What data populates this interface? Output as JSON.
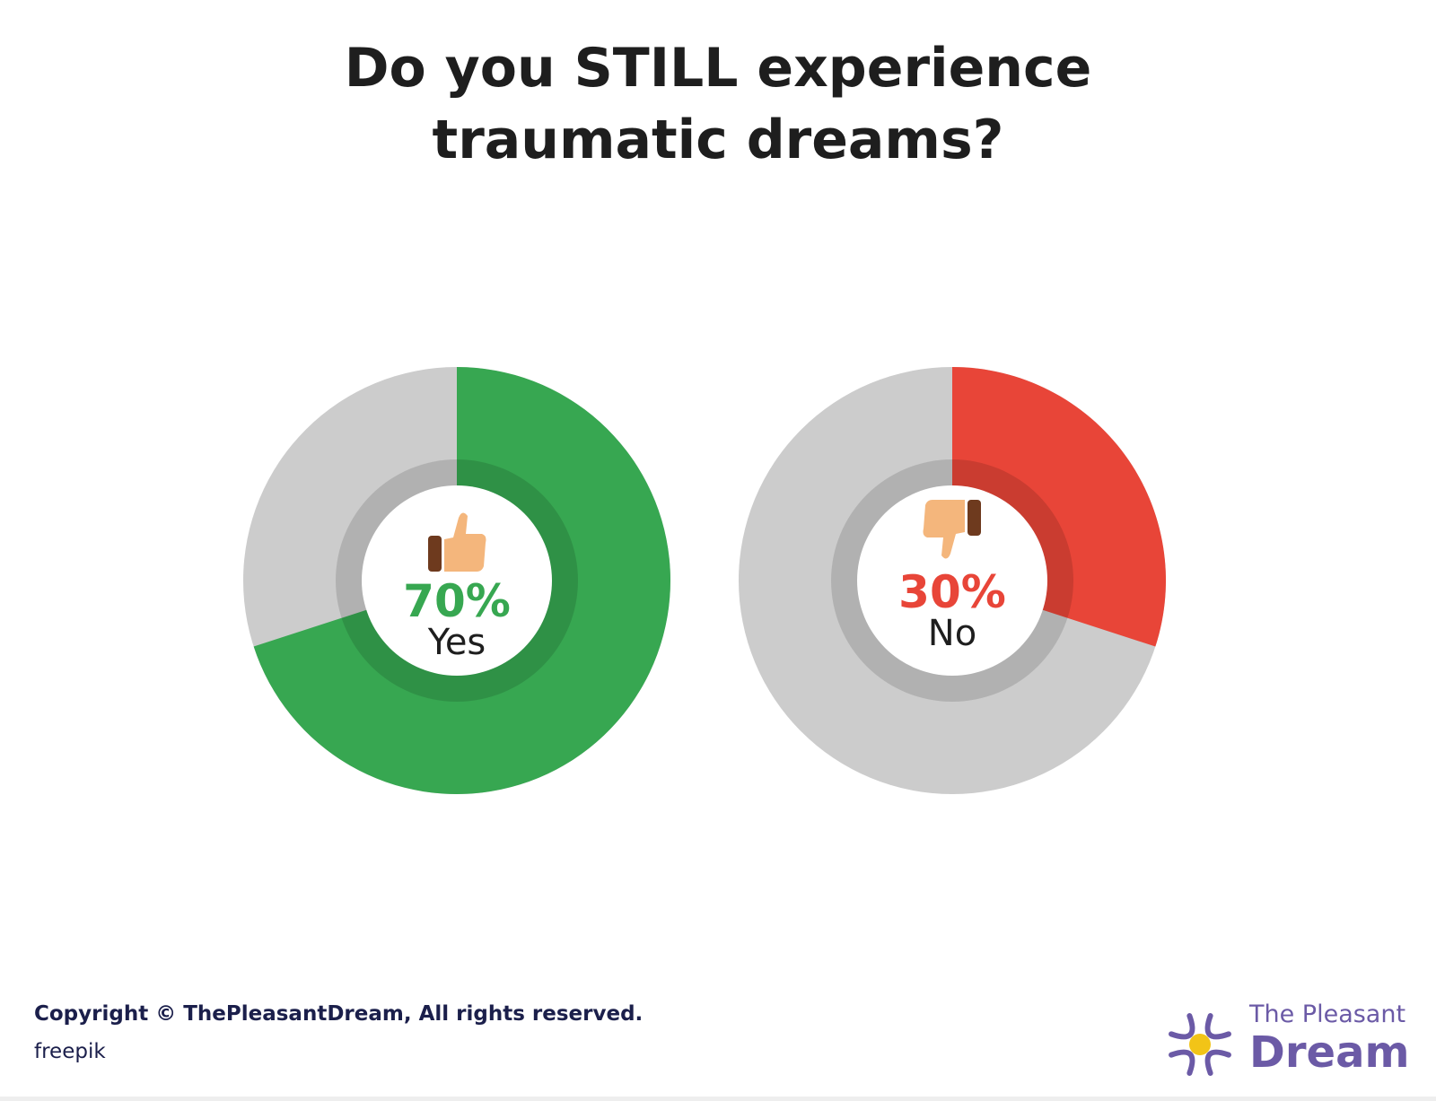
{
  "title_lines": [
    "Do you STILL experience",
    "traumatic dreams?"
  ],
  "chart_data": {
    "type": "pie",
    "title": "Do you STILL experience traumatic dreams?",
    "charts": [
      {
        "category": "Yes",
        "value": 70,
        "value_label": "70%",
        "color": "#37a751",
        "icon": "thumbs-up-icon"
      },
      {
        "category": "No",
        "value": 30,
        "value_label": "30%",
        "color": "#e84538",
        "icon": "thumbs-down-icon"
      }
    ],
    "remainder_color": "#cccccc"
  },
  "footer": {
    "copyright": "Copyright © ThePleasantDream, All rights reserved.",
    "credit": "freepik"
  },
  "brand": {
    "line1": "The Pleasant",
    "line2": "Dream",
    "color": "#6b5aa6",
    "accent": "#f2c417"
  }
}
